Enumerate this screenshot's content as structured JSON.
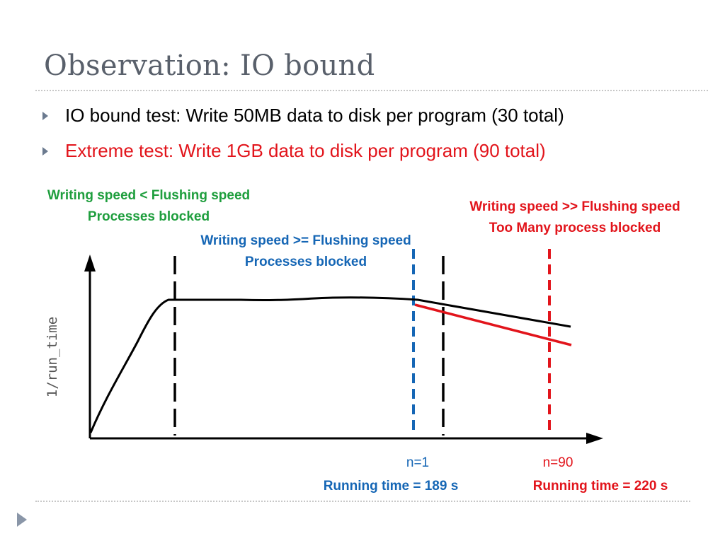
{
  "slide": {
    "title": "Observation: IO bound",
    "bullets": [
      "IO bound test: Write 50MB data to disk per program (30 total)",
      "Extreme test: Write 1GB data to disk per program (90 total)"
    ]
  },
  "annotations": {
    "green": [
      "Writing speed < Flushing speed",
      "Processes blocked"
    ],
    "blue": [
      "Writing speed >= Flushing speed",
      "Processes blocked"
    ],
    "red": [
      "Writing speed >> Flushing speed",
      "Too Many process blocked"
    ]
  },
  "chart": {
    "ylabel": "1/run_time",
    "markers": {
      "n1": "n=1",
      "n90": "n=90"
    },
    "running_time": {
      "blue": "Running time = 189 s",
      "red": "Running time = 220 s"
    }
  },
  "colors": {
    "title": "#59606b",
    "green": "#1e9e3d",
    "blue": "#1566b5",
    "red": "#e2141b",
    "black": "#000000"
  },
  "icons": {
    "bullet": "triangle-right-icon",
    "nav": "triangle-right-icon"
  }
}
